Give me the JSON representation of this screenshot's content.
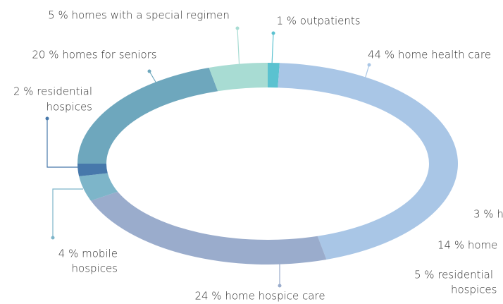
{
  "chart_data": {
    "type": "donut",
    "values": [
      1,
      44,
      24,
      4,
      2,
      20,
      5
    ],
    "value_labels": [
      [
        "1 % outpatients"
      ],
      [
        "44 % home health care"
      ],
      [
        "24 % home hospice care"
      ],
      [
        "4 % mobile",
        "hospices"
      ],
      [
        "2 % residential",
        "hospices"
      ],
      [
        "20 % homes for seniors"
      ],
      [
        "5 % homes with a special regimen"
      ]
    ],
    "colors": [
      "#5bc2d0",
      "#a9c6e6",
      "#9aaccc",
      "#7db5c9",
      "#4778ab",
      "#6ea7bd",
      "#a8dcd3"
    ],
    "clipped_labels": [
      [
        "3 % h"
      ],
      [
        "14 % home"
      ],
      [
        "5 % residential",
        "hospices"
      ]
    ]
  }
}
